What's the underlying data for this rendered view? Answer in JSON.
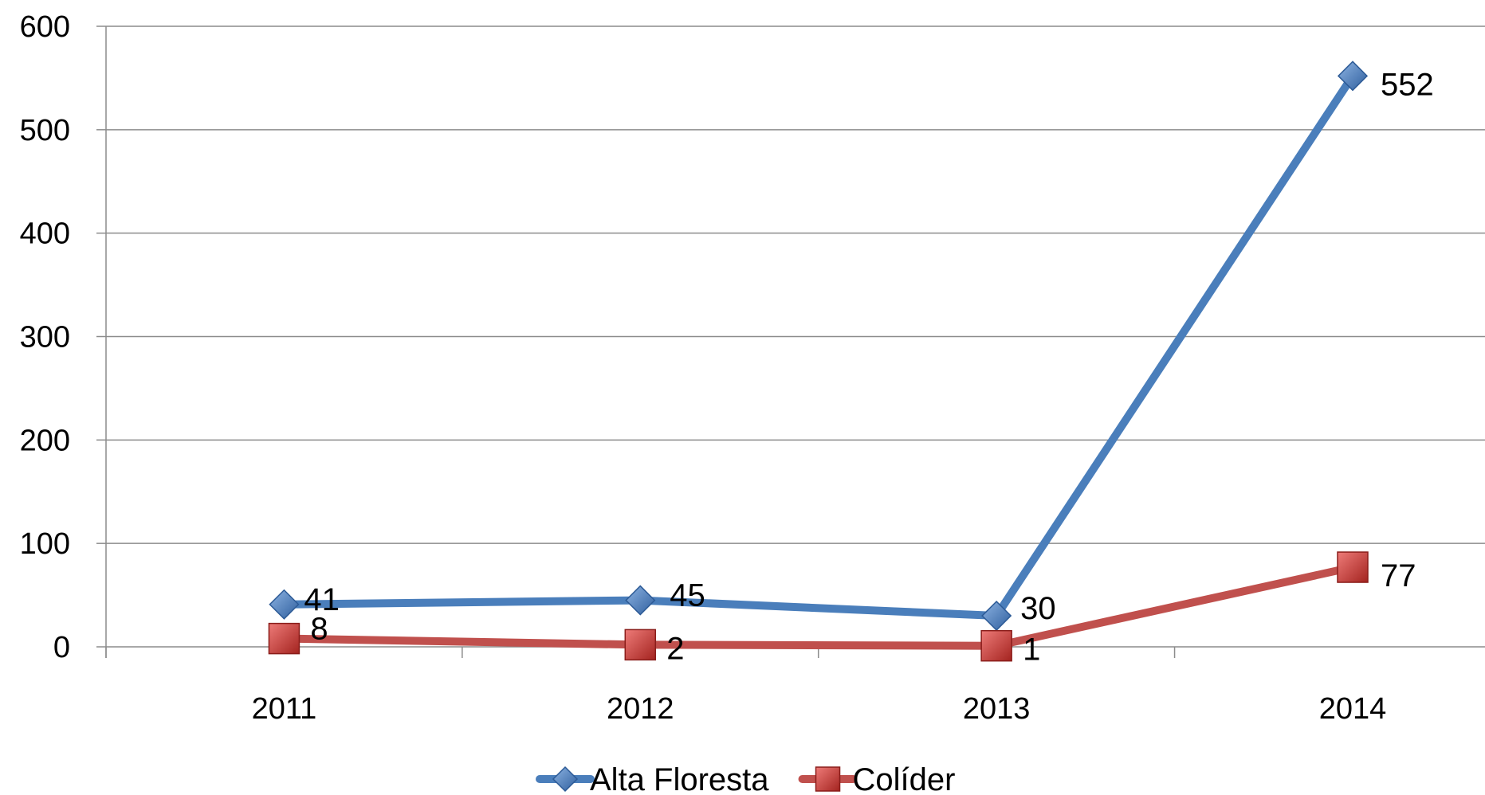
{
  "chart_data": {
    "type": "line",
    "title": "",
    "xlabel": "",
    "ylabel": "",
    "categories": [
      "2011",
      "2012",
      "2013",
      "2014"
    ],
    "ylim": [
      0,
      600
    ],
    "yticks": [
      "0",
      "100",
      "200",
      "300",
      "400",
      "500",
      "600"
    ],
    "grid": true,
    "legend_position": "bottom",
    "series": [
      {
        "name": "Alta Floresta",
        "values": [
          41,
          45,
          30,
          552
        ],
        "labels": [
          "41",
          "45",
          "30",
          "552"
        ],
        "color": "#4a7ebb",
        "marker": "diamond"
      },
      {
        "name": "Colíder",
        "values": [
          8,
          2,
          1,
          77
        ],
        "labels": [
          "8",
          "2",
          "1",
          "77"
        ],
        "color": "#c0504d",
        "marker": "square"
      }
    ]
  }
}
